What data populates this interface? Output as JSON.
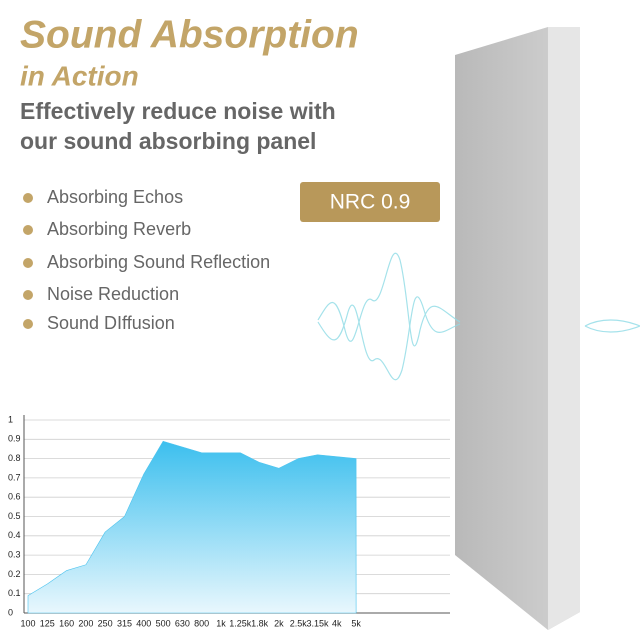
{
  "header": {
    "title": "Sound Absorption",
    "title_line2": "in Action",
    "subtitle_line1": "Effectively reduce noise with",
    "subtitle_line2": "our sound absorbing panel"
  },
  "features": [
    "Absorbing Echos",
    "Absorbing Reverb",
    "Absorbing Sound Reflection",
    "Noise Reduction",
    "Sound DIffusion"
  ],
  "badge": "NRC 0.9",
  "chart_data": {
    "type": "area",
    "color": "#4cc3ee",
    "categories": [
      "100",
      "125",
      "160",
      "200",
      "250",
      "315",
      "400",
      "500",
      "630",
      "800",
      "1k",
      "1.25k",
      "1.8k",
      "2k",
      "2.5k",
      "3.15k",
      "4k",
      "5k"
    ],
    "values": [
      0.09,
      0.15,
      0.22,
      0.25,
      0.42,
      0.5,
      0.72,
      0.89,
      0.86,
      0.83,
      0.83,
      0.83,
      0.78,
      0.75,
      0.8,
      0.82,
      0.81,
      0.8
    ],
    "ylim": [
      0,
      1
    ],
    "yticks": [
      0,
      0.1,
      0.2,
      0.3,
      0.4,
      0.5,
      0.6,
      0.7,
      0.8,
      0.9,
      1
    ],
    "grid": true
  }
}
